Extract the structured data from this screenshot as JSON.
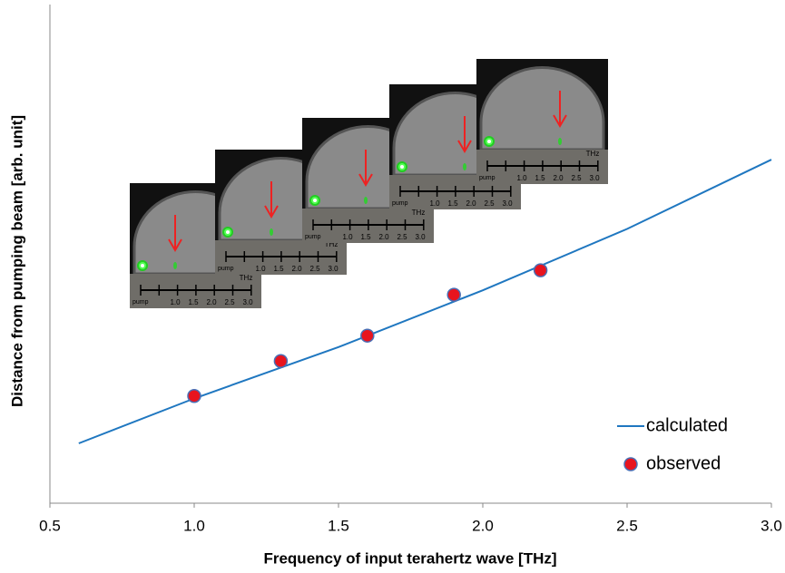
{
  "chart_data": {
    "type": "line",
    "xlabel": "Frequency of input terahertz wave [THz]",
    "ylabel": "Distance from pumping beam [arb. unit]",
    "xlim": [
      0.5,
      3.0
    ],
    "xticks": [
      {
        "value": 0.5,
        "label": "0.5"
      },
      {
        "value": 1.0,
        "label": "1.0"
      },
      {
        "value": 1.5,
        "label": "1.5"
      },
      {
        "value": 2.0,
        "label": "2.0"
      },
      {
        "value": 2.5,
        "label": "2.5"
      },
      {
        "value": 3.0,
        "label": "3.0"
      }
    ],
    "ylim": [
      0,
      10
    ],
    "legend": "lower right",
    "series": [
      {
        "name": "calculated",
        "color": "#1f77c0",
        "kind": "line",
        "x": [
          0.6,
          1.0,
          1.5,
          2.0,
          2.5,
          3.0
        ],
        "values": [
          1.2,
          2.1,
          3.13,
          4.27,
          5.5,
          6.89
        ]
      },
      {
        "name": "observed",
        "color": "#e8141e",
        "kind": "points",
        "x": [
          1.0,
          1.3,
          1.6,
          1.9,
          2.2
        ],
        "values": [
          2.15,
          2.85,
          3.36,
          4.18,
          4.67
        ]
      }
    ],
    "inset_labels": {
      "unit": "THz",
      "pump": "pump",
      "scale": [
        "1.0",
        "1.5",
        "2.0",
        "2.5",
        "3.0"
      ]
    }
  }
}
